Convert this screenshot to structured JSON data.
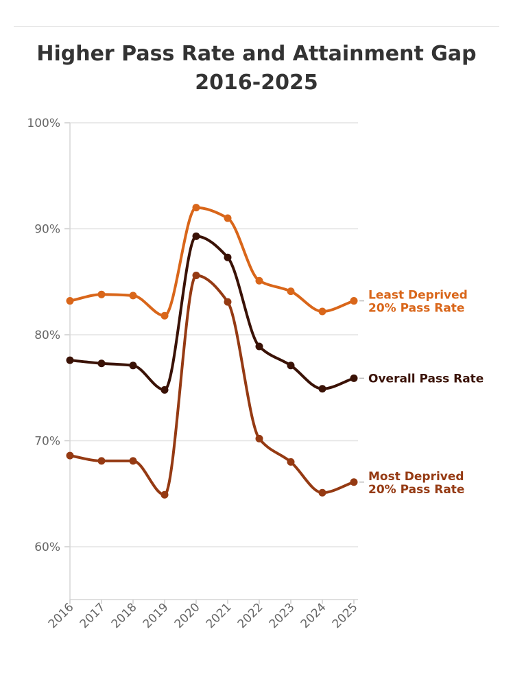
{
  "chart_data": {
    "type": "line",
    "title_line1": "Higher Pass Rate and Attainment Gap",
    "title_line2": "2016-2025",
    "xlabel": "",
    "ylabel": "",
    "x": [
      "2016",
      "2017",
      "2018",
      "2019",
      "2020",
      "2021",
      "2022",
      "2023",
      "2024",
      "2025"
    ],
    "y_ticks": [
      "60%",
      "70%",
      "80%",
      "90%",
      "100%"
    ],
    "ylim": [
      55,
      100
    ],
    "grid": true,
    "series": [
      {
        "name": "Least Deprived 20% Pass Rate",
        "label_line1": "Least Deprived",
        "label_line2": "20% Pass Rate",
        "color": "#d9661a",
        "values": [
          83.2,
          83.8,
          83.7,
          81.8,
          92.0,
          91.0,
          85.1,
          84.1,
          82.2,
          83.2
        ]
      },
      {
        "name": "Overall Pass Rate",
        "label_line1": "Overall Pass Rate",
        "label_line2": "",
        "color": "#3a1206",
        "values": [
          77.6,
          77.3,
          77.1,
          74.8,
          89.3,
          87.3,
          78.9,
          77.1,
          74.9,
          75.9
        ]
      },
      {
        "name": "Most Deprived 20% Pass Rate",
        "label_line1": "Most Deprived",
        "label_line2": "20% Pass Rate",
        "color": "#953a13",
        "values": [
          68.6,
          68.1,
          68.1,
          64.9,
          85.6,
          83.1,
          70.2,
          68.0,
          65.1,
          66.1
        ]
      }
    ]
  }
}
